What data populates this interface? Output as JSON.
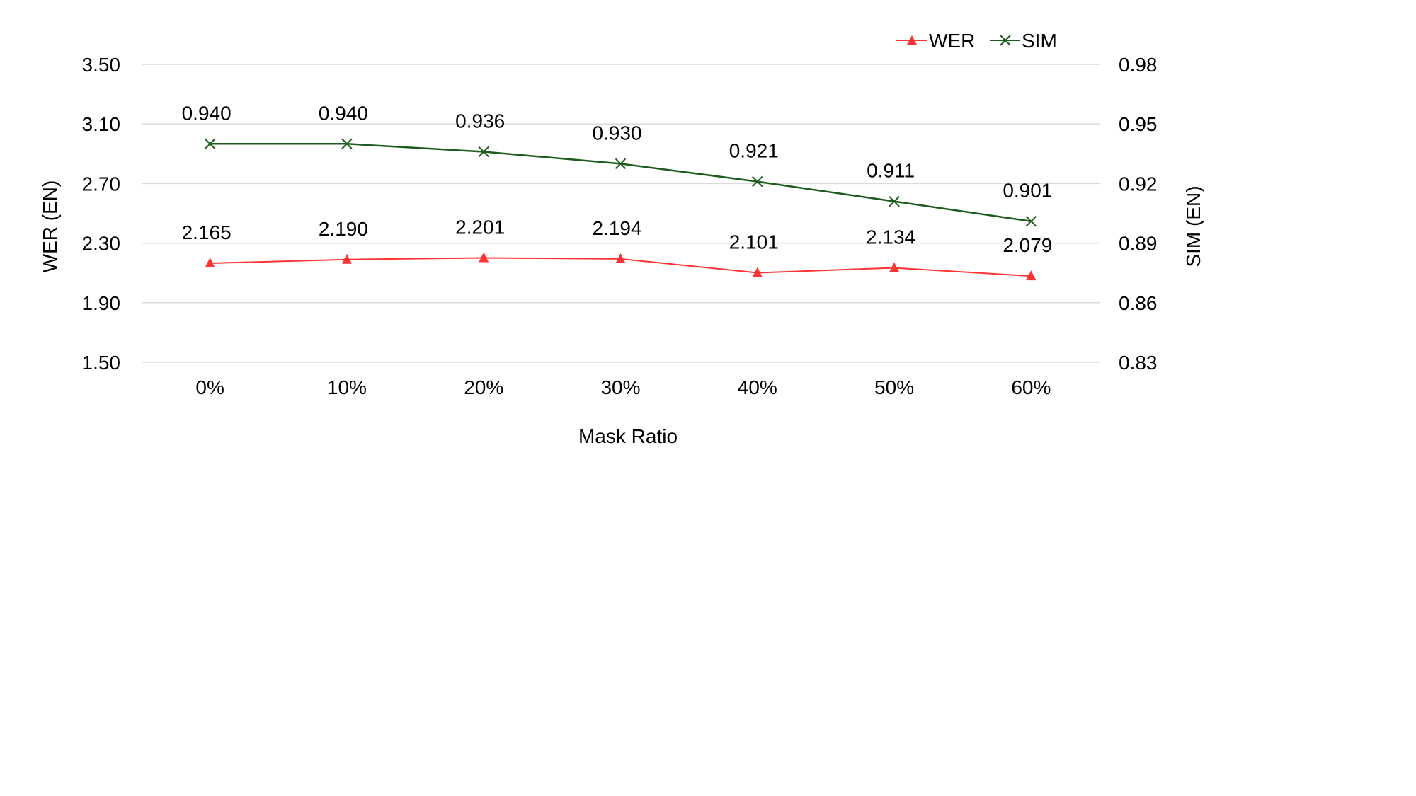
{
  "chart_data": {
    "type": "line",
    "title": "",
    "xlabel": "Mask Ratio",
    "ylabel_left": "WER (EN)",
    "ylabel_right": "SIM (EN)",
    "categories": [
      "0%",
      "10%",
      "20%",
      "30%",
      "40%",
      "50%",
      "60%"
    ],
    "y_left": {
      "min": 1.5,
      "max": 3.5,
      "ticks": [
        "3.50",
        "3.10",
        "2.70",
        "2.30",
        "1.90",
        "1.50"
      ],
      "tick_values": [
        3.5,
        3.1,
        2.7,
        2.3,
        1.9,
        1.5
      ]
    },
    "y_right": {
      "min": 0.83,
      "max": 0.98,
      "ticks": [
        "0.98",
        "0.95",
        "0.92",
        "0.89",
        "0.86",
        "0.83"
      ],
      "tick_values": [
        0.98,
        0.95,
        0.92,
        0.89,
        0.86,
        0.83
      ]
    },
    "grid": true,
    "legend_position": "top-right",
    "series": [
      {
        "name": "WER",
        "axis": "left",
        "color": "#ff3333",
        "marker": "triangle",
        "values": [
          2.165,
          2.19,
          2.201,
          2.194,
          2.101,
          2.134,
          2.079
        ],
        "labels": [
          "2.165",
          "2.190",
          "2.201",
          "2.194",
          "2.101",
          "2.134",
          "2.079"
        ]
      },
      {
        "name": "SIM",
        "axis": "right",
        "color": "#1e5c1e",
        "marker": "x",
        "values": [
          0.94,
          0.94,
          0.936,
          0.93,
          0.921,
          0.911,
          0.901
        ],
        "labels": [
          "0.940",
          "0.940",
          "0.936",
          "0.930",
          "0.921",
          "0.911",
          "0.901"
        ]
      }
    ]
  }
}
